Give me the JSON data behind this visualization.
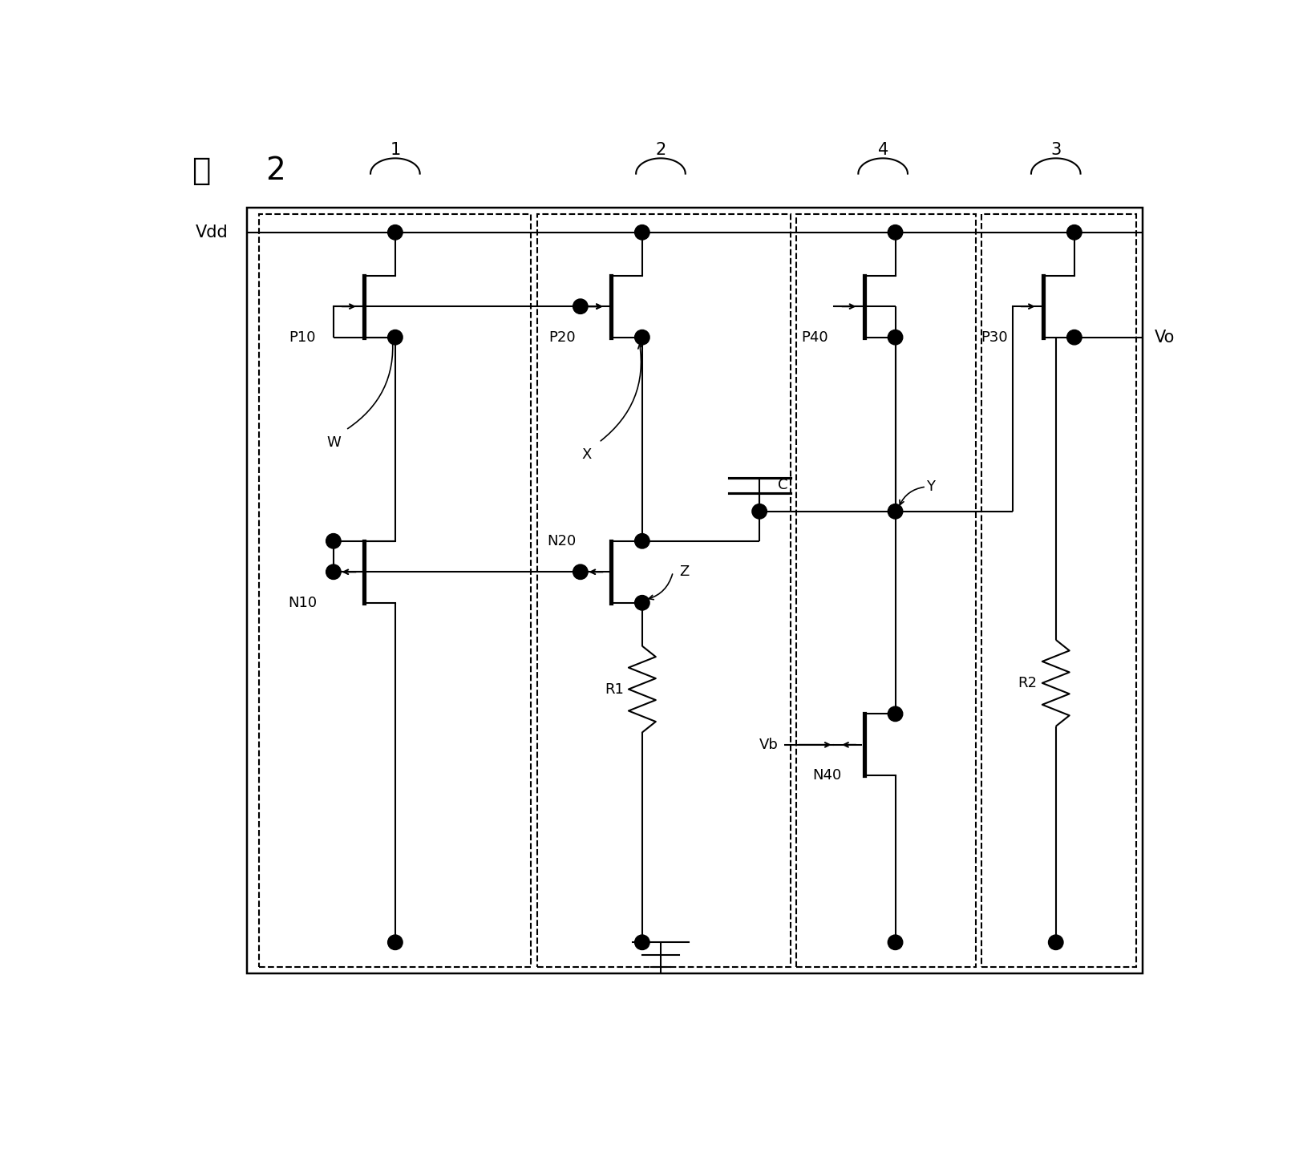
{
  "title_kanji": "図",
  "title_num": "2",
  "vdd_label": "Vdd",
  "vo_label": "Vo",
  "vb_label": "Vb",
  "block_labels": [
    "1",
    "2",
    "4",
    "3"
  ],
  "transistor_labels": [
    "P10",
    "P20",
    "N10",
    "N20",
    "P40",
    "P30",
    "N40"
  ],
  "component_labels": [
    "C",
    "R1",
    "R2"
  ],
  "node_labels": [
    "W",
    "X",
    "Y",
    "Z"
  ],
  "line_color": "#000000",
  "bg_color": "#ffffff"
}
